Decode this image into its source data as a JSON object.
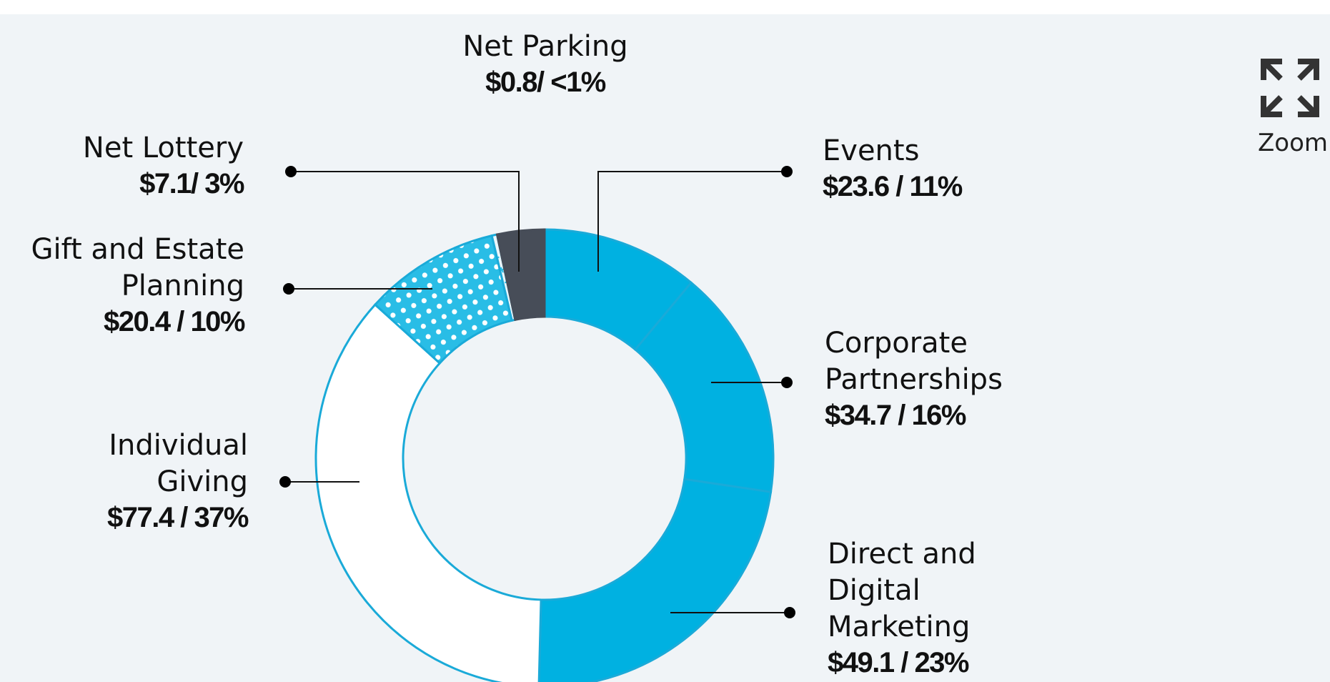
{
  "chart_data": {
    "type": "donut",
    "categories": [
      "Events",
      "Corporate Partnerships",
      "Direct and Digital Marketing",
      "Individual Giving",
      "Gift and Estate Planning",
      "Net Parking",
      "Net Lottery"
    ],
    "values": [
      23.6,
      34.7,
      49.1,
      77.4,
      20.4,
      0.8,
      7.1
    ],
    "value_labels": [
      "$23.6 / 11%",
      "$34.7 / 16%",
      "$49.1 / 23%",
      "$77.4 / 37%",
      "$20.4 / 10%",
      "$0.8/ <1%",
      "$7.1/ 3%"
    ],
    "colors": [
      "#00b1e1",
      "#00b1e1",
      "#00b1e1",
      "#ffffff",
      "#29bde6",
      "#eaf6fb",
      "#474d58"
    ],
    "patterns": [
      null,
      null,
      null,
      null,
      "dots",
      "plus",
      null
    ]
  },
  "zoom_label": "Zoom"
}
